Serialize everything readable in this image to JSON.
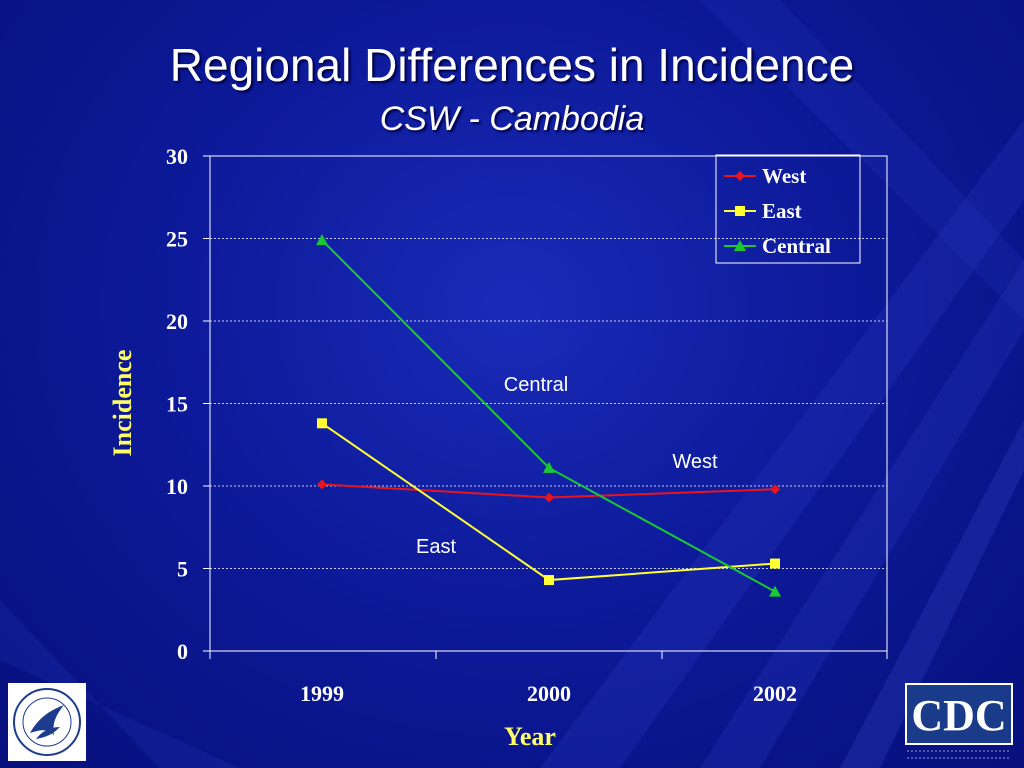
{
  "slide": {
    "title": "Regional Differences in Incidence",
    "subtitle": "CSW - Cambodia",
    "background_color": "#0d1a9a"
  },
  "logos": {
    "left": "hhs-seal",
    "right_text": "CDC"
  },
  "chart_data": {
    "type": "line",
    "categories": [
      "1999",
      "2000",
      "2002"
    ],
    "series": [
      {
        "name": "West",
        "values": [
          10.1,
          9.3,
          9.8
        ],
        "color": "#e8141e",
        "marker": "diamond"
      },
      {
        "name": "East",
        "values": [
          13.8,
          4.3,
          5.3
        ],
        "color": "#ffff33",
        "marker": "square"
      },
      {
        "name": "Central",
        "values": [
          24.9,
          11.1,
          3.6
        ],
        "color": "#19c832",
        "marker": "triangle"
      }
    ],
    "xlabel": "Year",
    "ylabel": "Incidence",
    "ylim": [
      0,
      30
    ],
    "yticks": [
      0,
      5,
      10,
      15,
      20,
      25,
      30
    ],
    "grid": true,
    "legend": "top-right",
    "annotations": [
      "Central",
      "West",
      "East"
    ]
  }
}
